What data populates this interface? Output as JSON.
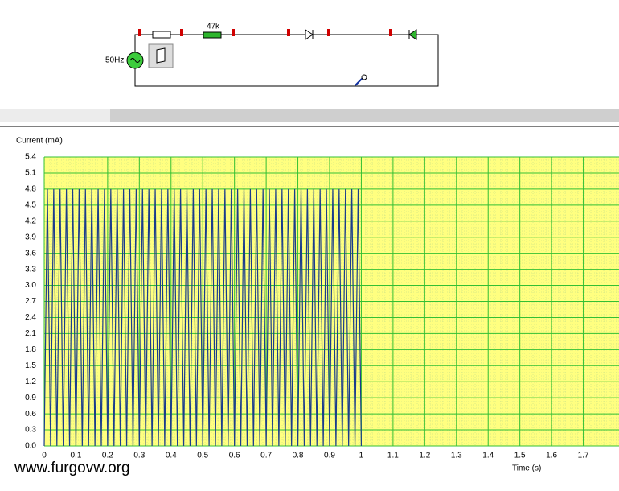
{
  "circuit": {
    "source_label": "50Hz",
    "resistor_label": "47k"
  },
  "watermark": "www.furgovw.org",
  "chart_data": {
    "type": "line",
    "y_label": "Current (mA)",
    "x_label": "Time (s)",
    "color": "#1a3c8c",
    "grid": true,
    "xlim": [
      0,
      1.8
    ],
    "ylim": [
      0,
      5.4
    ],
    "xticks": [
      0,
      0.1,
      0.2,
      0.3,
      0.4,
      0.5,
      0.6,
      0.7,
      0.8,
      0.9,
      1,
      1.1,
      1.2,
      1.3,
      1.4,
      1.5,
      1.6,
      1.7
    ],
    "yticks": [
      {
        "value": 0,
        "label": "0.0"
      },
      0.3,
      0.6,
      0.9,
      1.2,
      1.5,
      1.8,
      2.1,
      2.4,
      2.7,
      {
        "value": 3,
        "label": "3.0"
      },
      3.3,
      3.6,
      3.9,
      4.2,
      4.5,
      4.8,
      5.1,
      5.4
    ],
    "x": [
      0,
      0.01,
      0.02,
      0.03,
      0.04,
      0.05,
      0.06,
      0.07,
      0.08,
      0.09,
      0.1,
      0.11,
      0.12,
      0.13,
      0.14,
      0.15,
      0.16,
      0.17,
      0.18,
      0.19,
      0.2,
      0.21,
      0.22,
      0.23,
      0.24,
      0.25,
      0.26,
      0.27,
      0.28,
      0.29,
      0.3,
      0.31,
      0.32,
      0.33,
      0.34,
      0.35,
      0.36,
      0.37,
      0.38,
      0.39,
      0.4,
      0.41,
      0.42,
      0.43,
      0.44,
      0.45,
      0.46,
      0.47,
      0.48,
      0.49,
      0.5,
      0.51,
      0.52,
      0.53,
      0.54,
      0.55,
      0.56,
      0.57,
      0.58,
      0.59,
      0.6,
      0.61,
      0.62,
      0.63,
      0.64,
      0.65,
      0.66,
      0.67,
      0.68,
      0.69,
      0.7,
      0.71,
      0.72,
      0.73,
      0.74,
      0.75,
      0.76,
      0.77,
      0.78,
      0.79,
      0.8,
      0.81,
      0.82,
      0.83,
      0.84,
      0.85,
      0.86,
      0.87,
      0.88,
      0.89,
      0.9,
      0.91,
      0.92,
      0.93,
      0.94,
      0.95,
      0.96,
      0.97,
      0.98,
      0.99,
      1
    ],
    "values": [
      0,
      4.8,
      0,
      4.8,
      0,
      4.8,
      0,
      4.8,
      0,
      4.8,
      0,
      4.8,
      0,
      4.8,
      0,
      4.8,
      0,
      4.8,
      0,
      4.8,
      0,
      4.8,
      0,
      4.8,
      0,
      4.8,
      0,
      4.8,
      0,
      4.8,
      0,
      4.8,
      0,
      4.8,
      0,
      4.8,
      0,
      4.8,
      0,
      4.8,
      0,
      4.8,
      0,
      4.8,
      0,
      4.8,
      0,
      4.8,
      0,
      4.8,
      0,
      4.8,
      0,
      4.8,
      0,
      4.8,
      0,
      4.8,
      0,
      4.8,
      0,
      4.8,
      0,
      4.8,
      0,
      4.8,
      0,
      4.8,
      0,
      4.8,
      0,
      4.8,
      0,
      4.8,
      0,
      4.8,
      0,
      4.8,
      0,
      4.8,
      0,
      4.8,
      0,
      4.8,
      0,
      4.8,
      0,
      4.8,
      0,
      4.8,
      0,
      4.8,
      0,
      4.8,
      0,
      4.8,
      0,
      4.8,
      0,
      4.8,
      0
    ]
  }
}
